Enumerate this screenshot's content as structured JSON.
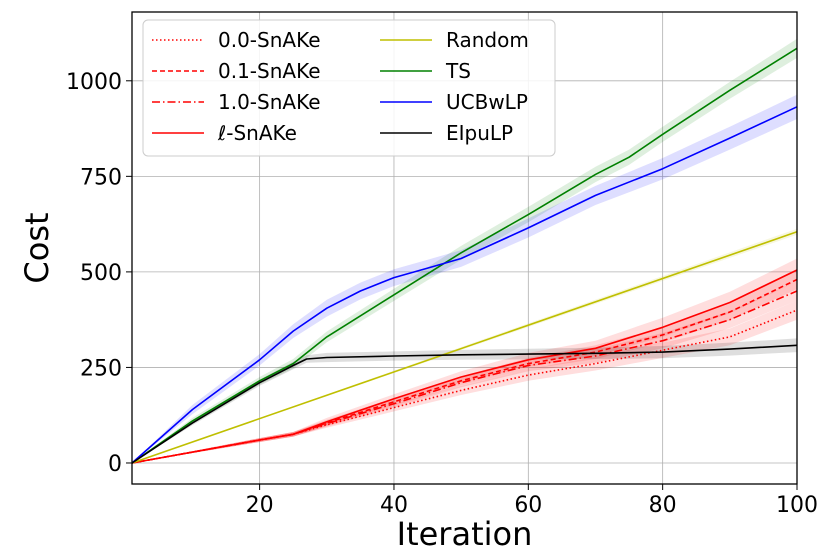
{
  "chart_data": {
    "type": "line",
    "title": "",
    "xlabel": "Iteration",
    "ylabel": "Cost",
    "xlim": [
      1,
      100
    ],
    "ylim": [
      -55,
      1180
    ],
    "xticks": [
      20,
      40,
      60,
      80,
      100
    ],
    "yticks": [
      0,
      250,
      500,
      750,
      1000
    ],
    "grid": true,
    "legend_position": "top-left",
    "legend_columns": 2,
    "series": [
      {
        "name": "0.0-SnAKe",
        "color": "#ff0000",
        "dash": "dotted",
        "x": [
          1,
          20,
          25,
          30,
          40,
          50,
          60,
          70,
          80,
          90,
          100
        ],
        "y": [
          0,
          60,
          75,
          100,
          145,
          190,
          230,
          260,
          295,
          330,
          400
        ],
        "band": [
          0,
          5,
          6,
          8,
          10,
          12,
          15,
          18,
          20,
          22,
          25
        ]
      },
      {
        "name": "0.1-SnAKe",
        "color": "#ff0000",
        "dash": "dashed",
        "x": [
          1,
          20,
          25,
          30,
          40,
          50,
          60,
          70,
          80,
          90,
          100
        ],
        "y": [
          0,
          60,
          75,
          105,
          160,
          215,
          260,
          290,
          335,
          395,
          480
        ],
        "band": [
          0,
          5,
          6,
          8,
          10,
          12,
          15,
          18,
          20,
          22,
          25
        ]
      },
      {
        "name": "1.0-SnAKe",
        "color": "#ff0000",
        "dash": "dashdot",
        "x": [
          1,
          20,
          25,
          30,
          40,
          50,
          60,
          70,
          80,
          90,
          100
        ],
        "y": [
          0,
          60,
          75,
          103,
          155,
          210,
          255,
          280,
          320,
          375,
          450
        ],
        "band": [
          0,
          5,
          6,
          8,
          10,
          12,
          15,
          18,
          20,
          22,
          25
        ]
      },
      {
        "name": "ℓ-SnAKe",
        "color": "#ff0000",
        "dash": "solid",
        "x": [
          1,
          20,
          25,
          30,
          40,
          50,
          60,
          70,
          80,
          90,
          100
        ],
        "y": [
          0,
          60,
          75,
          108,
          168,
          225,
          270,
          300,
          355,
          420,
          505
        ],
        "band": [
          0,
          5,
          6,
          10,
          12,
          15,
          18,
          20,
          25,
          28,
          30
        ]
      },
      {
        "name": "Random",
        "color": "#bfbf00",
        "dash": "solid",
        "x": [
          1,
          100
        ],
        "y": [
          0,
          605
        ],
        "band": [
          0,
          8
        ]
      },
      {
        "name": "TS",
        "color": "#008000",
        "dash": "solid",
        "x": [
          1,
          10,
          20,
          25,
          30,
          40,
          50,
          60,
          70,
          75,
          80,
          90,
          100
        ],
        "y": [
          0,
          110,
          215,
          260,
          330,
          440,
          550,
          650,
          755,
          800,
          860,
          975,
          1085
        ],
        "band": [
          0,
          8,
          10,
          12,
          14,
          16,
          18,
          20,
          20,
          20,
          20,
          22,
          25
        ]
      },
      {
        "name": "UCBwLP",
        "color": "#0000ff",
        "dash": "solid",
        "x": [
          1,
          10,
          20,
          25,
          30,
          35,
          40,
          45,
          50,
          60,
          70,
          80,
          90,
          100
        ],
        "y": [
          0,
          140,
          270,
          345,
          405,
          450,
          485,
          510,
          535,
          615,
          700,
          770,
          850,
          932
        ],
        "band": [
          0,
          12,
          15,
          18,
          22,
          22,
          22,
          22,
          22,
          25,
          25,
          28,
          30,
          32
        ]
      },
      {
        "name": "EIpuLP",
        "color": "#000000",
        "dash": "solid",
        "x": [
          1,
          10,
          20,
          25,
          27,
          30,
          40,
          50,
          60,
          70,
          80,
          90,
          100
        ],
        "y": [
          0,
          105,
          210,
          255,
          272,
          276,
          280,
          283,
          285,
          287,
          290,
          298,
          308
        ],
        "band": [
          0,
          6,
          8,
          10,
          10,
          12,
          12,
          13,
          14,
          15,
          16,
          17,
          18
        ]
      }
    ]
  }
}
